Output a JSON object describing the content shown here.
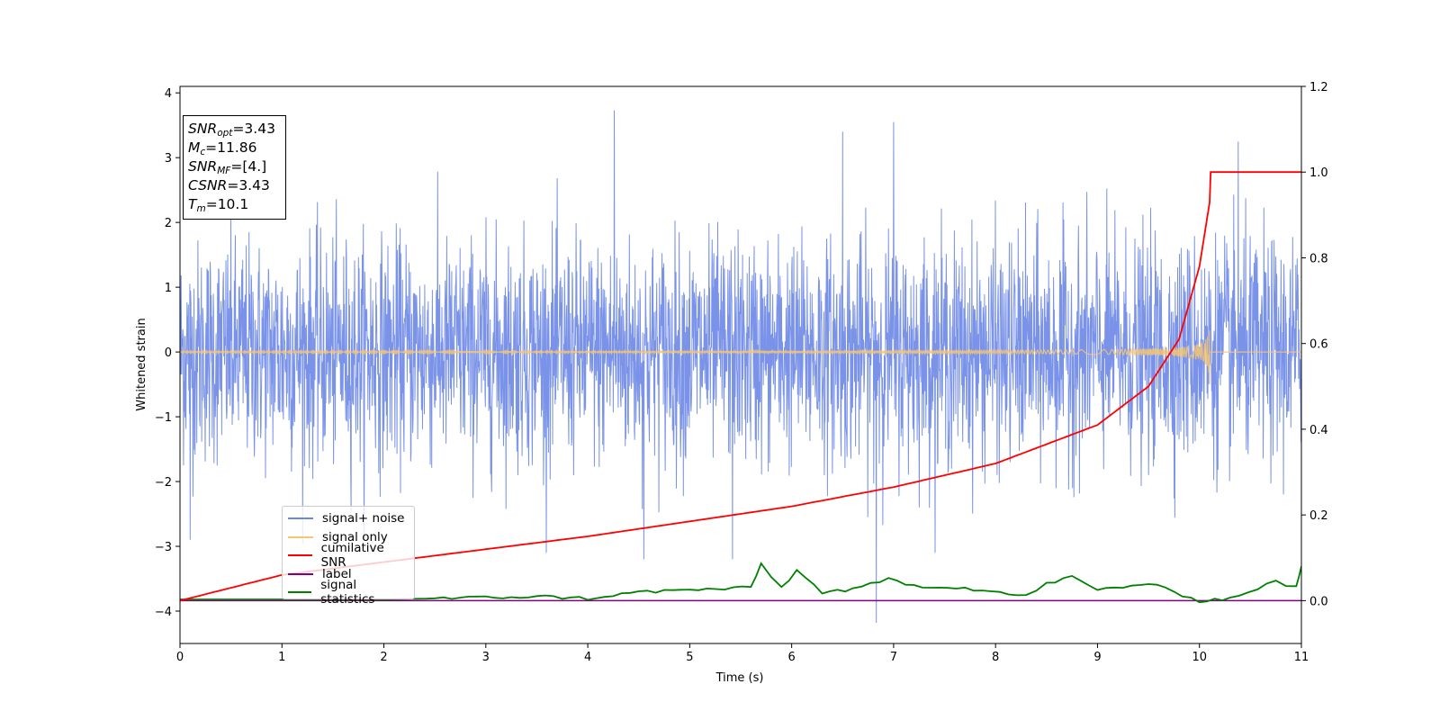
{
  "chart_data": {
    "type": "line",
    "xlabel": "Time (s)",
    "ylabel": "Whitened strain",
    "xlim": [
      0,
      11
    ],
    "ylim_left": [
      -4.5,
      4.1
    ],
    "ylim_right": [
      -0.1,
      1.2
    ],
    "x_ticks": [
      "0",
      "1",
      "2",
      "3",
      "4",
      "5",
      "6",
      "7",
      "8",
      "9",
      "10",
      "11"
    ],
    "y_left_ticks": [
      "4",
      "3",
      "2",
      "1",
      "0",
      "−1",
      "−2",
      "−3",
      "−4"
    ],
    "y_left_tick_values": [
      4,
      3,
      2,
      1,
      0,
      -1,
      -2,
      -3,
      -4
    ],
    "y_right_ticks": [
      "1.2",
      "1.0",
      "0.8",
      "0.6",
      "0.4",
      "0.2",
      "0.0"
    ],
    "y_right_tick_values": [
      1.2,
      1.0,
      0.8,
      0.6,
      0.4,
      0.2,
      0.0
    ],
    "grid": false,
    "legend_position": "lower-left",
    "series": [
      {
        "name": "signal+ noise",
        "color": "#6b87e6",
        "axis": "left",
        "description_values": {
          "approx_std": 1.0,
          "max": 3.75,
          "min": -4.2,
          "x_range": [
            0,
            11
          ]
        }
      },
      {
        "name": "signal only",
        "color": "#f5c675",
        "axis": "left",
        "chirp": {
          "peak_time": 10.1,
          "peak_amplitude": 0.45,
          "min_amplitude": -0.5
        }
      },
      {
        "name": "cumilative SNR",
        "color": "#ff0000",
        "axis": "right",
        "x": [
          0,
          1,
          2,
          3,
          4,
          5,
          6,
          7,
          8,
          9,
          9.5,
          9.8,
          10.0,
          10.1,
          10.11,
          11
        ],
        "y": [
          0.0,
          0.06,
          0.09,
          0.12,
          0.15,
          0.185,
          0.22,
          0.265,
          0.32,
          0.41,
          0.5,
          0.61,
          0.78,
          0.93,
          1.0,
          1.0
        ]
      },
      {
        "name": "label",
        "color": "#800080",
        "axis": "right",
        "x": [
          0,
          11
        ],
        "y": [
          0.0,
          0.0
        ]
      },
      {
        "name": "signal statistics",
        "color": "#008000",
        "axis": "right",
        "x": [
          0,
          1,
          2,
          2.5,
          3,
          3.5,
          4,
          4.5,
          5,
          5.6,
          5.7,
          5.9,
          6.05,
          6.3,
          6.6,
          6.95,
          7.2,
          7.7,
          8.3,
          8.5,
          8.75,
          9.0,
          9.5,
          10.0,
          10.3,
          10.75,
          10.95,
          11.0
        ],
        "y": [
          0.003,
          0.003,
          0.003,
          0.005,
          0.007,
          0.01,
          0.005,
          0.02,
          0.025,
          0.03,
          0.085,
          0.03,
          0.07,
          0.02,
          0.025,
          0.05,
          0.035,
          0.03,
          0.01,
          0.04,
          0.055,
          0.025,
          0.04,
          0.0,
          0.005,
          0.045,
          0.03,
          0.08
        ]
      }
    ]
  },
  "legend": {
    "items": [
      {
        "label": "signal+ noise",
        "color": "#6b87e6"
      },
      {
        "label": "signal only",
        "color": "#f5c675"
      },
      {
        "label": "cumilative SNR",
        "color": "#ff0000"
      },
      {
        "label": "label",
        "color": "#800080"
      },
      {
        "label": "signal statistics",
        "color": "#008000"
      }
    ]
  },
  "infobox": {
    "snr_opt_sym": "SNR",
    "snr_opt_sub": "opt",
    "snr_opt_val": "=3.43",
    "mc_sym": "M",
    "mc_sub": "c",
    "mc_val": "=11.86",
    "snr_mf_sym": "SNR",
    "snr_mf_sub": "MF",
    "snr_mf_val": "=[4.]",
    "csnr_sym": "CSNR",
    "csnr_val": "=3.43",
    "tm_sym": "T",
    "tm_sub": "m",
    "tm_val": "=10.1"
  }
}
